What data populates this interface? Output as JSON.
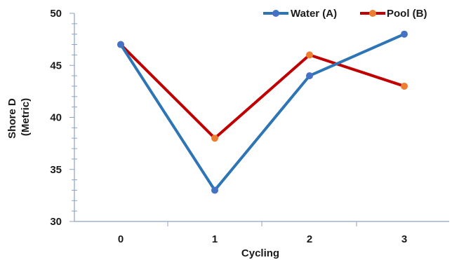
{
  "chart_data": {
    "type": "line",
    "title": "",
    "xlabel": "Cycling",
    "ylabel_lines": [
      "Shore D",
      "(Metric)"
    ],
    "categories": [
      "0",
      "1",
      "2",
      "3"
    ],
    "ylim": [
      30,
      50
    ],
    "yticks": [
      "30",
      "35",
      "40",
      "45",
      "50"
    ],
    "legend_position": "top-right",
    "grid": false,
    "series": [
      {
        "name": "Water (A)",
        "values": [
          47,
          33,
          44,
          48
        ],
        "line_color": "#2e75b6",
        "marker_color": "#4472c4"
      },
      {
        "name": "Pool (B)",
        "values": [
          47,
          38,
          46,
          43
        ],
        "line_color": "#c00000",
        "marker_color": "#ed7d31"
      }
    ]
  }
}
